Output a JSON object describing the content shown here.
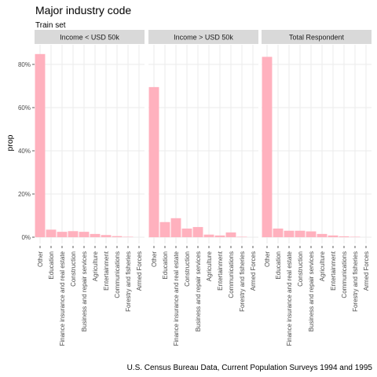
{
  "chart_data": {
    "type": "bar",
    "title": "Major industry code",
    "subtitle": "Train set",
    "ylabel": "prop",
    "xlabel": "",
    "caption": "U.S. Census Bureau Data, Current Population Surveys 1994 and 1995",
    "ylim": [
      0,
      0.88
    ],
    "yticks": [
      0,
      0.2,
      0.4,
      0.6,
      0.8
    ],
    "ytick_labels": [
      "0%",
      "20%",
      "40%",
      "60%",
      "80%"
    ],
    "grid": true,
    "bar_color": "#FFB1BE",
    "strip_color": "#D9D9D9",
    "categories": [
      "Other",
      "Education",
      "Finance insurance and real estate",
      "Construction",
      "Business and repair services",
      "Agriculture",
      "Entertainment",
      "Communications",
      "Forestry and fisheries",
      "Armed Forces"
    ],
    "panels": [
      {
        "name": "Income < USD 50k",
        "values": [
          0.848,
          0.035,
          0.025,
          0.028,
          0.025,
          0.015,
          0.01,
          0.005,
          0.002,
          0.0
        ]
      },
      {
        "name": "Income > USD 50k",
        "values": [
          0.695,
          0.07,
          0.088,
          0.04,
          0.047,
          0.012,
          0.008,
          0.022,
          0.002,
          0.0
        ]
      },
      {
        "name": "Total Respondent",
        "values": [
          0.835,
          0.04,
          0.03,
          0.03,
          0.027,
          0.015,
          0.008,
          0.004,
          0.002,
          0.0
        ]
      }
    ]
  }
}
